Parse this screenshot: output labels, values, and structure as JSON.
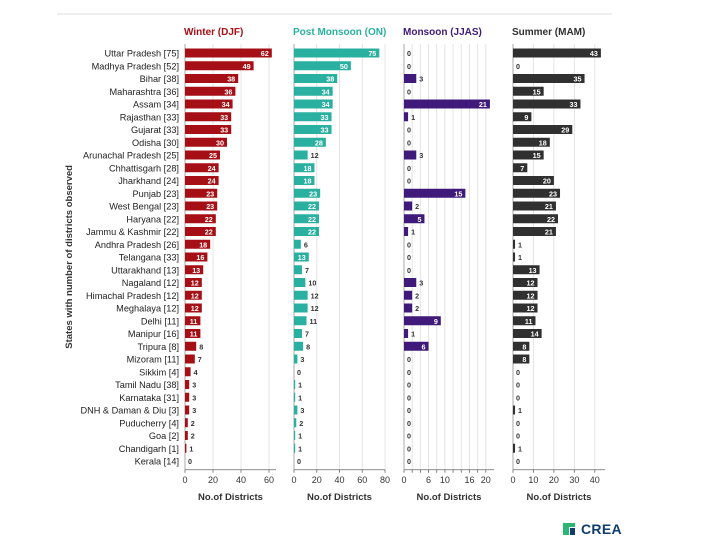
{
  "chart_data": {
    "type": "bar",
    "orientation": "horizontal",
    "ylabel": "States with number of districts observed",
    "categories": [
      "Uttar Pradesh [75]",
      "Madhya Pradesh [52]",
      "Bihar [38]",
      "Maharashtra [36]",
      "Assam [34]",
      "Rajasthan [33]",
      "Gujarat [33]",
      "Odisha [30]",
      "Arunachal Pradesh [25]",
      "Chhattisgarh [28]",
      "Jharkhand [24]",
      "Punjab [23]",
      "West Bengal [23]",
      "Haryana [22]",
      "Jammu & Kashmir [22]",
      "Andhra Pradesh [26]",
      "Telangana [33]",
      "Uttarakhand [13]",
      "Nagaland [12]",
      "Himachal Pradesh [12]",
      "Meghalaya [12]",
      "Delhi [11]",
      "Manipur [16]",
      "Tripura [8]",
      "Mizoram [11]",
      "Sikkim [4]",
      "Tamil Nadu [38]",
      "Karnataka [31]",
      "DNH & Daman & Diu [3]",
      "Puducherry [4]",
      "Goa [2]",
      "Chandigarh [1]",
      "Kerala [14]"
    ],
    "series": [
      {
        "name": "Winter (DJF)",
        "color": "#a50f15",
        "xlabel": "No.of Districts",
        "xlim": [
          0,
          65
        ],
        "ticks": [
          0,
          20,
          40,
          60
        ],
        "values": [
          62,
          49,
          38,
          36,
          34,
          33,
          33,
          30,
          25,
          24,
          24,
          23,
          23,
          22,
          22,
          18,
          16,
          13,
          12,
          12,
          12,
          11,
          11,
          8,
          7,
          4,
          3,
          3,
          3,
          2,
          2,
          1,
          0
        ]
      },
      {
        "name": "Post Monsoon (ON)",
        "color": "#2ab0a0",
        "xlabel": "No.of Districts",
        "xlim": [
          0,
          80
        ],
        "ticks": [
          0,
          20,
          40,
          60,
          80
        ],
        "values": [
          75,
          50,
          38,
          34,
          34,
          33,
          33,
          28,
          12,
          18,
          18,
          23,
          22,
          22,
          22,
          6,
          13,
          7,
          10,
          12,
          12,
          11,
          7,
          8,
          3,
          0,
          1,
          1,
          3,
          2,
          1,
          1,
          0
        ]
      },
      {
        "name": "Monsoon (JJAS)",
        "color": "#3f1a7a",
        "xlabel": "No.of Districts",
        "xlim": [
          0,
          22
        ],
        "ticks": [
          0,
          2,
          4,
          6,
          8,
          10,
          12,
          14,
          16,
          18,
          20
        ],
        "tick_labels": [
          "0",
          "",
          "",
          "6",
          "",
          "10",
          "",
          "",
          "16",
          "",
          "20"
        ],
        "values": [
          0,
          0,
          3,
          0,
          21,
          1,
          0,
          0,
          3,
          0,
          0,
          15,
          2,
          5,
          1,
          0,
          0,
          0,
          3,
          2,
          2,
          9,
          1,
          6,
          0,
          0,
          0,
          0,
          0,
          0,
          0,
          0,
          0
        ]
      },
      {
        "name": "Summer (MAM)",
        "color": "#303030",
        "xlabel": "No.of Districts",
        "xlim": [
          0,
          45
        ],
        "ticks": [
          0,
          10,
          20,
          30,
          40
        ],
        "values": [
          43,
          0,
          35,
          15,
          33,
          9,
          29,
          18,
          15,
          7,
          20,
          23,
          21,
          22,
          21,
          1,
          1,
          13,
          12,
          12,
          12,
          11,
          14,
          8,
          8,
          0,
          0,
          0,
          1,
          0,
          0,
          1,
          0
        ]
      }
    ]
  },
  "logo": {
    "text": "CREA"
  }
}
